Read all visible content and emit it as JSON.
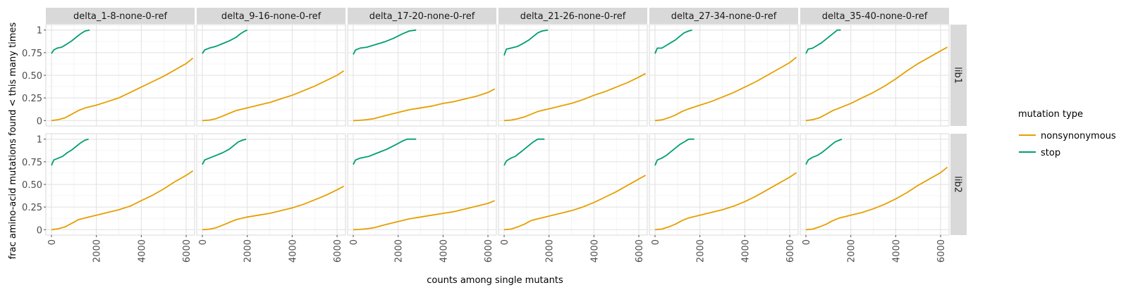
{
  "chart_data": {
    "type": "line",
    "xlabel": "counts among single mutants",
    "ylabel": "frac amino-acid mutations found < this many times",
    "xlim": [
      0,
      6300
    ],
    "ylim": [
      0,
      1
    ],
    "x_ticks": [
      0,
      2000,
      4000,
      6000
    ],
    "x_tick_labels": [
      "0",
      "2000",
      "4000",
      "6000"
    ],
    "y_ticks": [
      0,
      0.25,
      0.5,
      0.75,
      1
    ],
    "y_tick_labels": [
      "0",
      "0.25",
      "0.50",
      "0.75",
      "1"
    ],
    "grid": true,
    "legend": {
      "title": "mutation type",
      "position": "right",
      "entries": [
        {
          "label": "nonsynonymous",
          "color": "#E69F00"
        },
        {
          "label": "stop",
          "color": "#009E73"
        }
      ]
    },
    "columns": [
      "delta_1-8-none-0-ref",
      "delta_9-16-none-0-ref",
      "delta_17-20-none-0-ref",
      "delta_21-26-none-0-ref",
      "delta_27-34-none-0-ref",
      "delta_35-40-none-0-ref"
    ],
    "rows": [
      "lib1",
      "lib2"
    ],
    "panels": [
      {
        "row": "lib1",
        "col": "delta_1-8-none-0-ref",
        "series": [
          {
            "name": "nonsynonymous",
            "x": [
              0,
              300,
              600,
              900,
              1200,
              1500,
              2000,
              2500,
              3000,
              3500,
              4000,
              4500,
              5000,
              5500,
              6000,
              6300
            ],
            "y": [
              0,
              0.01,
              0.03,
              0.07,
              0.11,
              0.14,
              0.17,
              0.21,
              0.25,
              0.31,
              0.37,
              0.43,
              0.49,
              0.56,
              0.63,
              0.69
            ]
          },
          {
            "name": "stop",
            "x": [
              0,
              100,
              250,
              450,
              650,
              900,
              1100,
              1300,
              1500,
              1700
            ],
            "y": [
              0.74,
              0.78,
              0.8,
              0.81,
              0.84,
              0.88,
              0.92,
              0.96,
              0.99,
              1.0
            ]
          }
        ]
      },
      {
        "row": "lib1",
        "col": "delta_9-16-none-0-ref",
        "series": [
          {
            "name": "nonsynonymous",
            "x": [
              0,
              300,
              600,
              900,
              1200,
              1500,
              2000,
              2500,
              3000,
              3500,
              4000,
              4500,
              5000,
              5500,
              6000,
              6300
            ],
            "y": [
              0,
              0.005,
              0.02,
              0.05,
              0.08,
              0.11,
              0.14,
              0.17,
              0.2,
              0.24,
              0.28,
              0.33,
              0.38,
              0.44,
              0.5,
              0.55
            ]
          },
          {
            "name": "stop",
            "x": [
              0,
              100,
              300,
              600,
              900,
              1200,
              1500,
              1700,
              1900,
              2000
            ],
            "y": [
              0.74,
              0.78,
              0.8,
              0.82,
              0.85,
              0.88,
              0.92,
              0.96,
              0.99,
              1.0
            ]
          }
        ]
      },
      {
        "row": "lib1",
        "col": "delta_17-20-none-0-ref",
        "series": [
          {
            "name": "nonsynonymous",
            "x": [
              0,
              300,
              600,
              900,
              1200,
              1500,
              2000,
              2500,
              3000,
              3500,
              4000,
              4500,
              5000,
              5500,
              6000,
              6300
            ],
            "y": [
              0,
              0.003,
              0.01,
              0.02,
              0.04,
              0.06,
              0.09,
              0.12,
              0.14,
              0.16,
              0.19,
              0.21,
              0.24,
              0.27,
              0.31,
              0.35
            ]
          },
          {
            "name": "stop",
            "x": [
              0,
              100,
              300,
              600,
              1000,
              1400,
              1800,
              2200,
              2500,
              2800
            ],
            "y": [
              0.73,
              0.78,
              0.8,
              0.81,
              0.84,
              0.87,
              0.91,
              0.96,
              0.99,
              1.0
            ]
          }
        ]
      },
      {
        "row": "lib1",
        "col": "delta_21-26-none-0-ref",
        "series": [
          {
            "name": "nonsynonymous",
            "x": [
              0,
              300,
              600,
              900,
              1200,
              1500,
              2000,
              2500,
              3000,
              3500,
              4000,
              4500,
              5000,
              5500,
              6000,
              6300
            ],
            "y": [
              0,
              0.005,
              0.02,
              0.04,
              0.07,
              0.1,
              0.13,
              0.16,
              0.19,
              0.23,
              0.28,
              0.32,
              0.37,
              0.42,
              0.48,
              0.52
            ]
          },
          {
            "name": "stop",
            "x": [
              0,
              100,
              300,
              600,
              900,
              1100,
              1300,
              1500,
              1700,
              1950
            ],
            "y": [
              0.72,
              0.79,
              0.8,
              0.82,
              0.86,
              0.89,
              0.93,
              0.97,
              0.99,
              1.0
            ]
          }
        ]
      },
      {
        "row": "lib1",
        "col": "delta_27-34-none-0-ref",
        "series": [
          {
            "name": "nonsynonymous",
            "x": [
              0,
              300,
              600,
              900,
              1200,
              1500,
              2000,
              2500,
              3000,
              3500,
              4000,
              4500,
              5000,
              5500,
              6000,
              6300
            ],
            "y": [
              0,
              0.008,
              0.03,
              0.06,
              0.1,
              0.13,
              0.17,
              0.21,
              0.26,
              0.31,
              0.37,
              0.43,
              0.5,
              0.57,
              0.64,
              0.7
            ]
          },
          {
            "name": "stop",
            "x": [
              0,
              100,
              300,
              500,
              700,
              900,
              1100,
              1300,
              1500,
              1650
            ],
            "y": [
              0.74,
              0.8,
              0.8,
              0.83,
              0.86,
              0.89,
              0.93,
              0.97,
              0.99,
              1.0
            ]
          }
        ]
      },
      {
        "row": "lib1",
        "col": "delta_35-40-none-0-ref",
        "series": [
          {
            "name": "nonsynonymous",
            "x": [
              0,
              300,
              600,
              900,
              1200,
              1500,
              2000,
              2500,
              3000,
              3500,
              4000,
              4500,
              5000,
              5500,
              6000,
              6300
            ],
            "y": [
              0,
              0.01,
              0.03,
              0.07,
              0.11,
              0.14,
              0.19,
              0.25,
              0.31,
              0.38,
              0.46,
              0.55,
              0.63,
              0.7,
              0.77,
              0.81
            ]
          },
          {
            "name": "stop",
            "x": [
              0,
              100,
              300,
              500,
              700,
              900,
              1100,
              1300,
              1400,
              1550
            ],
            "y": [
              0.74,
              0.79,
              0.8,
              0.83,
              0.86,
              0.9,
              0.94,
              0.98,
              1.0,
              1.0
            ]
          }
        ]
      },
      {
        "row": "lib2",
        "col": "delta_1-8-none-0-ref",
        "series": [
          {
            "name": "nonsynonymous",
            "x": [
              0,
              300,
              600,
              900,
              1200,
              1500,
              2000,
              2500,
              3000,
              3500,
              4000,
              4500,
              5000,
              5500,
              6000,
              6300
            ],
            "y": [
              0,
              0.01,
              0.03,
              0.07,
              0.11,
              0.13,
              0.16,
              0.19,
              0.22,
              0.26,
              0.32,
              0.38,
              0.45,
              0.53,
              0.6,
              0.65
            ]
          },
          {
            "name": "stop",
            "x": [
              0,
              100,
              300,
              500,
              700,
              900,
              1100,
              1300,
              1500,
              1650
            ],
            "y": [
              0.71,
              0.77,
              0.79,
              0.81,
              0.85,
              0.88,
              0.92,
              0.96,
              0.99,
              1.0
            ]
          }
        ]
      },
      {
        "row": "lib2",
        "col": "delta_9-16-none-0-ref",
        "series": [
          {
            "name": "nonsynonymous",
            "x": [
              0,
              300,
              600,
              900,
              1200,
              1500,
              2000,
              2500,
              3000,
              3500,
              4000,
              4500,
              5000,
              5500,
              6000,
              6300
            ],
            "y": [
              0,
              0.005,
              0.02,
              0.05,
              0.08,
              0.11,
              0.14,
              0.16,
              0.18,
              0.21,
              0.24,
              0.28,
              0.33,
              0.38,
              0.44,
              0.48
            ]
          },
          {
            "name": "stop",
            "x": [
              0,
              100,
              300,
              600,
              900,
              1200,
              1400,
              1600,
              1800,
              1950
            ],
            "y": [
              0.72,
              0.77,
              0.79,
              0.82,
              0.85,
              0.89,
              0.93,
              0.97,
              0.99,
              1.0
            ]
          }
        ]
      },
      {
        "row": "lib2",
        "col": "delta_17-20-none-0-ref",
        "series": [
          {
            "name": "nonsynonymous",
            "x": [
              0,
              300,
              600,
              900,
              1200,
              1500,
              2000,
              2500,
              3000,
              3500,
              4000,
              4500,
              5000,
              5500,
              6000,
              6300
            ],
            "y": [
              0,
              0.003,
              0.01,
              0.02,
              0.04,
              0.06,
              0.09,
              0.12,
              0.14,
              0.16,
              0.18,
              0.2,
              0.23,
              0.26,
              0.29,
              0.32
            ]
          },
          {
            "name": "stop",
            "x": [
              0,
              100,
              300,
              700,
              1100,
              1500,
              1900,
              2200,
              2400,
              2800
            ],
            "y": [
              0.72,
              0.77,
              0.79,
              0.81,
              0.85,
              0.89,
              0.94,
              0.98,
              1.0,
              1.0
            ]
          }
        ]
      },
      {
        "row": "lib2",
        "col": "delta_21-26-none-0-ref",
        "series": [
          {
            "name": "nonsynonymous",
            "x": [
              0,
              300,
              600,
              900,
              1200,
              1500,
              2000,
              2500,
              3000,
              3500,
              4000,
              4500,
              5000,
              5500,
              6000,
              6300
            ],
            "y": [
              0,
              0.006,
              0.03,
              0.06,
              0.1,
              0.12,
              0.15,
              0.18,
              0.21,
              0.25,
              0.3,
              0.36,
              0.42,
              0.49,
              0.56,
              0.6
            ]
          },
          {
            "name": "stop",
            "x": [
              0,
              100,
              300,
              500,
              700,
              900,
              1100,
              1300,
              1500,
              1800
            ],
            "y": [
              0.71,
              0.76,
              0.79,
              0.81,
              0.85,
              0.89,
              0.93,
              0.97,
              1.0,
              1.0
            ]
          }
        ]
      },
      {
        "row": "lib2",
        "col": "delta_27-34-none-0-ref",
        "series": [
          {
            "name": "nonsynonymous",
            "x": [
              0,
              300,
              600,
              900,
              1200,
              1500,
              2000,
              2500,
              3000,
              3500,
              4000,
              4500,
              5000,
              5500,
              6000,
              6300
            ],
            "y": [
              0,
              0.006,
              0.03,
              0.06,
              0.1,
              0.13,
              0.16,
              0.19,
              0.22,
              0.26,
              0.31,
              0.37,
              0.44,
              0.51,
              0.58,
              0.63
            ]
          },
          {
            "name": "stop",
            "x": [
              0,
              100,
              300,
              500,
              700,
              900,
              1100,
              1300,
              1500,
              1750
            ],
            "y": [
              0.71,
              0.77,
              0.79,
              0.82,
              0.86,
              0.9,
              0.94,
              0.97,
              1.0,
              1.0
            ]
          }
        ]
      },
      {
        "row": "lib2",
        "col": "delta_35-40-none-0-ref",
        "series": [
          {
            "name": "nonsynonymous",
            "x": [
              0,
              300,
              600,
              900,
              1200,
              1500,
              2000,
              2500,
              3000,
              3500,
              4000,
              4500,
              5000,
              5500,
              6000,
              6300
            ],
            "y": [
              0,
              0.006,
              0.03,
              0.06,
              0.1,
              0.13,
              0.16,
              0.19,
              0.23,
              0.28,
              0.34,
              0.41,
              0.49,
              0.56,
              0.63,
              0.69
            ]
          },
          {
            "name": "stop",
            "x": [
              0,
              100,
              300,
              500,
              700,
              900,
              1100,
              1300,
              1500,
              1600
            ],
            "y": [
              0.72,
              0.77,
              0.8,
              0.82,
              0.85,
              0.89,
              0.93,
              0.97,
              0.99,
              1.0
            ]
          }
        ]
      }
    ]
  }
}
